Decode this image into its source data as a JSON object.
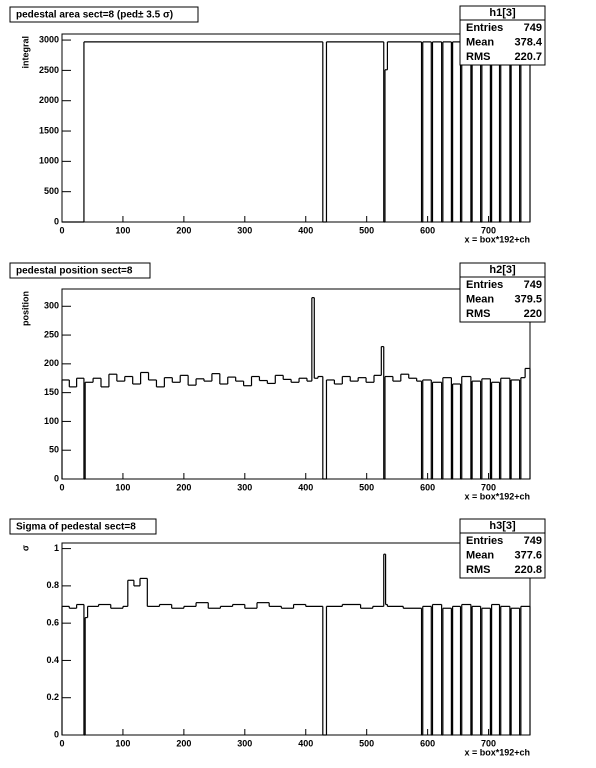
{
  "chart_data": [
    {
      "type": "histogram",
      "title": "pedestal area sect=8 (ped± 3.5 σ)",
      "xlabel": "x = box*192+ch",
      "ylabel": "integral",
      "stats": {
        "title": "h1[3]",
        "labels": [
          "Entries",
          "Mean",
          "RMS"
        ],
        "values": [
          749,
          378.4,
          220.7
        ]
      },
      "bins": [
        0,
        36,
        428,
        434,
        528,
        530,
        534,
        590,
        592,
        606,
        608,
        623,
        625,
        639,
        641,
        654,
        656,
        671,
        673,
        687,
        689,
        703,
        705,
        718,
        720,
        735,
        737,
        751,
        753,
        768
      ],
      "values": [
        0,
        2970,
        0,
        2970,
        0,
        2510,
        2970,
        0,
        2970,
        0,
        2970,
        0,
        2970,
        0,
        2970,
        0,
        2970,
        0,
        2970,
        0,
        2970,
        0,
        2970,
        0,
        2970,
        0,
        2970,
        0,
        2970
      ],
      "color": "#000000",
      "xlim": [
        0,
        768
      ],
      "ylim": [
        0,
        3100
      ],
      "xticks": [
        0,
        100,
        200,
        300,
        400,
        500,
        600,
        700
      ],
      "yticks": [
        0,
        500,
        1000,
        1500,
        2000,
        2500,
        3000
      ]
    },
    {
      "type": "histogram",
      "title": "pedestal position sect=8",
      "xlabel": "x = box*192+ch",
      "ylabel": "position",
      "stats": {
        "title": "h2[3]",
        "labels": [
          "Entries",
          "Mean",
          "RMS"
        ],
        "values": [
          749,
          379.5,
          220
        ]
      },
      "bins": [
        0,
        12,
        24,
        36,
        38,
        51,
        64,
        77,
        90,
        103,
        116,
        129,
        142,
        155,
        168,
        181,
        194,
        207,
        220,
        233,
        246,
        259,
        272,
        285,
        298,
        311,
        324,
        337,
        350,
        363,
        376,
        389,
        402,
        410,
        414,
        420,
        428,
        434,
        447,
        460,
        473,
        486,
        499,
        512,
        524,
        528,
        530,
        543,
        556,
        569,
        582,
        590,
        592,
        606,
        608,
        623,
        625,
        639,
        641,
        654,
        656,
        671,
        673,
        687,
        689,
        703,
        705,
        718,
        720,
        735,
        737,
        751,
        753,
        760,
        768
      ],
      "values": [
        172,
        160,
        175,
        0,
        168,
        175,
        160,
        182,
        170,
        178,
        165,
        185,
        172,
        160,
        176,
        168,
        180,
        163,
        174,
        170,
        183,
        165,
        177,
        170,
        162,
        178,
        171,
        166,
        180,
        173,
        168,
        175,
        170,
        315,
        175,
        178,
        0,
        172,
        165,
        178,
        170,
        176,
        168,
        180,
        230,
        0,
        178,
        170,
        182,
        175,
        170,
        0,
        172,
        0,
        168,
        0,
        176,
        0,
        165,
        0,
        178,
        0,
        170,
        0,
        174,
        0,
        168,
        0,
        175,
        0,
        172,
        0,
        176,
        192
      ],
      "color": "#000000",
      "xlim": [
        0,
        768
      ],
      "ylim": [
        0,
        330
      ],
      "xticks": [
        0,
        100,
        200,
        300,
        400,
        500,
        600,
        700
      ],
      "yticks": [
        0,
        50,
        100,
        150,
        200,
        250,
        300
      ]
    },
    {
      "type": "histogram",
      "title": "Sigma of pedestal sect=8",
      "xlabel": "x = box*192+ch",
      "ylabel": "σ",
      "stats": {
        "title": "h3[3]",
        "labels": [
          "Entries",
          "Mean",
          "RMS"
        ],
        "values": [
          749,
          377.6,
          220.8
        ]
      },
      "bins": [
        0,
        12,
        24,
        36,
        38,
        42,
        60,
        80,
        100,
        108,
        118,
        128,
        140,
        160,
        180,
        200,
        220,
        240,
        260,
        280,
        300,
        320,
        340,
        360,
        380,
        400,
        428,
        434,
        460,
        490,
        510,
        528,
        531,
        534,
        560,
        590,
        592,
        606,
        608,
        623,
        625,
        639,
        641,
        654,
        656,
        671,
        673,
        687,
        689,
        703,
        705,
        718,
        720,
        735,
        737,
        751,
        753,
        768
      ],
      "values": [
        0.69,
        0.68,
        0.7,
        0,
        0.63,
        0.69,
        0.7,
        0.68,
        0.69,
        0.83,
        0.8,
        0.84,
        0.69,
        0.7,
        0.68,
        0.69,
        0.71,
        0.68,
        0.69,
        0.7,
        0.68,
        0.71,
        0.69,
        0.68,
        0.7,
        0.69,
        0,
        0.69,
        0.7,
        0.68,
        0.69,
        0.97,
        0.7,
        0.69,
        0.68,
        0,
        0.69,
        0,
        0.7,
        0,
        0.68,
        0,
        0.69,
        0,
        0.7,
        0,
        0.69,
        0,
        0.68,
        0,
        0.7,
        0,
        0.69,
        0,
        0.68,
        0,
        0.69
      ],
      "color": "#000000",
      "xlim": [
        0,
        768
      ],
      "ylim": [
        0,
        1.03
      ],
      "xticks": [
        0,
        100,
        200,
        300,
        400,
        500,
        600,
        700
      ],
      "yticks": [
        0,
        0.2,
        0.4,
        0.6,
        0.8,
        1
      ]
    }
  ]
}
